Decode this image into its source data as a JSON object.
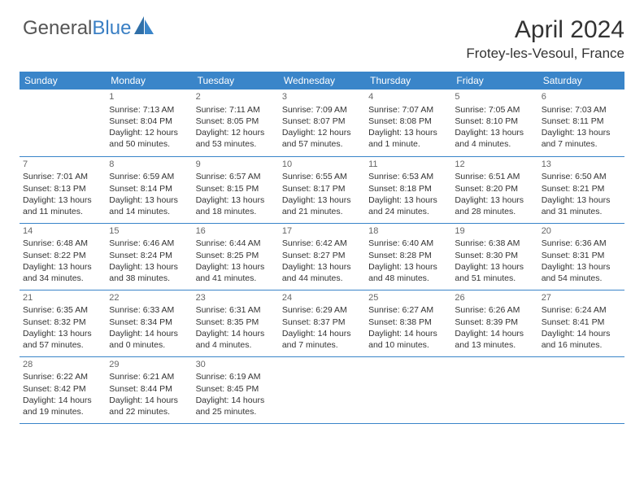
{
  "logo": {
    "text1": "General",
    "text2": "Blue"
  },
  "title": "April 2024",
  "location": "Frotey-les-Vesoul, France",
  "colors": {
    "header_bg": "#3a85c9",
    "header_text": "#ffffff",
    "row_border": "#3a85c9",
    "body_text": "#333333",
    "daynum": "#666666",
    "logo_gray": "#555555",
    "logo_blue": "#3a7fc4",
    "page_bg": "#ffffff"
  },
  "typography": {
    "title_fontsize": 30,
    "location_fontsize": 17,
    "weekday_fontsize": 12,
    "cell_fontsize": 10.5,
    "logo_fontsize": 24
  },
  "weekdays": [
    "Sunday",
    "Monday",
    "Tuesday",
    "Wednesday",
    "Thursday",
    "Friday",
    "Saturday"
  ],
  "weeks": [
    [
      null,
      {
        "n": "1",
        "sr": "Sunrise: 7:13 AM",
        "ss": "Sunset: 8:04 PM",
        "d1": "Daylight: 12 hours",
        "d2": "and 50 minutes."
      },
      {
        "n": "2",
        "sr": "Sunrise: 7:11 AM",
        "ss": "Sunset: 8:05 PM",
        "d1": "Daylight: 12 hours",
        "d2": "and 53 minutes."
      },
      {
        "n": "3",
        "sr": "Sunrise: 7:09 AM",
        "ss": "Sunset: 8:07 PM",
        "d1": "Daylight: 12 hours",
        "d2": "and 57 minutes."
      },
      {
        "n": "4",
        "sr": "Sunrise: 7:07 AM",
        "ss": "Sunset: 8:08 PM",
        "d1": "Daylight: 13 hours",
        "d2": "and 1 minute."
      },
      {
        "n": "5",
        "sr": "Sunrise: 7:05 AM",
        "ss": "Sunset: 8:10 PM",
        "d1": "Daylight: 13 hours",
        "d2": "and 4 minutes."
      },
      {
        "n": "6",
        "sr": "Sunrise: 7:03 AM",
        "ss": "Sunset: 8:11 PM",
        "d1": "Daylight: 13 hours",
        "d2": "and 7 minutes."
      }
    ],
    [
      {
        "n": "7",
        "sr": "Sunrise: 7:01 AM",
        "ss": "Sunset: 8:13 PM",
        "d1": "Daylight: 13 hours",
        "d2": "and 11 minutes."
      },
      {
        "n": "8",
        "sr": "Sunrise: 6:59 AM",
        "ss": "Sunset: 8:14 PM",
        "d1": "Daylight: 13 hours",
        "d2": "and 14 minutes."
      },
      {
        "n": "9",
        "sr": "Sunrise: 6:57 AM",
        "ss": "Sunset: 8:15 PM",
        "d1": "Daylight: 13 hours",
        "d2": "and 18 minutes."
      },
      {
        "n": "10",
        "sr": "Sunrise: 6:55 AM",
        "ss": "Sunset: 8:17 PM",
        "d1": "Daylight: 13 hours",
        "d2": "and 21 minutes."
      },
      {
        "n": "11",
        "sr": "Sunrise: 6:53 AM",
        "ss": "Sunset: 8:18 PM",
        "d1": "Daylight: 13 hours",
        "d2": "and 24 minutes."
      },
      {
        "n": "12",
        "sr": "Sunrise: 6:51 AM",
        "ss": "Sunset: 8:20 PM",
        "d1": "Daylight: 13 hours",
        "d2": "and 28 minutes."
      },
      {
        "n": "13",
        "sr": "Sunrise: 6:50 AM",
        "ss": "Sunset: 8:21 PM",
        "d1": "Daylight: 13 hours",
        "d2": "and 31 minutes."
      }
    ],
    [
      {
        "n": "14",
        "sr": "Sunrise: 6:48 AM",
        "ss": "Sunset: 8:22 PM",
        "d1": "Daylight: 13 hours",
        "d2": "and 34 minutes."
      },
      {
        "n": "15",
        "sr": "Sunrise: 6:46 AM",
        "ss": "Sunset: 8:24 PM",
        "d1": "Daylight: 13 hours",
        "d2": "and 38 minutes."
      },
      {
        "n": "16",
        "sr": "Sunrise: 6:44 AM",
        "ss": "Sunset: 8:25 PM",
        "d1": "Daylight: 13 hours",
        "d2": "and 41 minutes."
      },
      {
        "n": "17",
        "sr": "Sunrise: 6:42 AM",
        "ss": "Sunset: 8:27 PM",
        "d1": "Daylight: 13 hours",
        "d2": "and 44 minutes."
      },
      {
        "n": "18",
        "sr": "Sunrise: 6:40 AM",
        "ss": "Sunset: 8:28 PM",
        "d1": "Daylight: 13 hours",
        "d2": "and 48 minutes."
      },
      {
        "n": "19",
        "sr": "Sunrise: 6:38 AM",
        "ss": "Sunset: 8:30 PM",
        "d1": "Daylight: 13 hours",
        "d2": "and 51 minutes."
      },
      {
        "n": "20",
        "sr": "Sunrise: 6:36 AM",
        "ss": "Sunset: 8:31 PM",
        "d1": "Daylight: 13 hours",
        "d2": "and 54 minutes."
      }
    ],
    [
      {
        "n": "21",
        "sr": "Sunrise: 6:35 AM",
        "ss": "Sunset: 8:32 PM",
        "d1": "Daylight: 13 hours",
        "d2": "and 57 minutes."
      },
      {
        "n": "22",
        "sr": "Sunrise: 6:33 AM",
        "ss": "Sunset: 8:34 PM",
        "d1": "Daylight: 14 hours",
        "d2": "and 0 minutes."
      },
      {
        "n": "23",
        "sr": "Sunrise: 6:31 AM",
        "ss": "Sunset: 8:35 PM",
        "d1": "Daylight: 14 hours",
        "d2": "and 4 minutes."
      },
      {
        "n": "24",
        "sr": "Sunrise: 6:29 AM",
        "ss": "Sunset: 8:37 PM",
        "d1": "Daylight: 14 hours",
        "d2": "and 7 minutes."
      },
      {
        "n": "25",
        "sr": "Sunrise: 6:27 AM",
        "ss": "Sunset: 8:38 PM",
        "d1": "Daylight: 14 hours",
        "d2": "and 10 minutes."
      },
      {
        "n": "26",
        "sr": "Sunrise: 6:26 AM",
        "ss": "Sunset: 8:39 PM",
        "d1": "Daylight: 14 hours",
        "d2": "and 13 minutes."
      },
      {
        "n": "27",
        "sr": "Sunrise: 6:24 AM",
        "ss": "Sunset: 8:41 PM",
        "d1": "Daylight: 14 hours",
        "d2": "and 16 minutes."
      }
    ],
    [
      {
        "n": "28",
        "sr": "Sunrise: 6:22 AM",
        "ss": "Sunset: 8:42 PM",
        "d1": "Daylight: 14 hours",
        "d2": "and 19 minutes."
      },
      {
        "n": "29",
        "sr": "Sunrise: 6:21 AM",
        "ss": "Sunset: 8:44 PM",
        "d1": "Daylight: 14 hours",
        "d2": "and 22 minutes."
      },
      {
        "n": "30",
        "sr": "Sunrise: 6:19 AM",
        "ss": "Sunset: 8:45 PM",
        "d1": "Daylight: 14 hours",
        "d2": "and 25 minutes."
      },
      null,
      null,
      null,
      null
    ]
  ]
}
